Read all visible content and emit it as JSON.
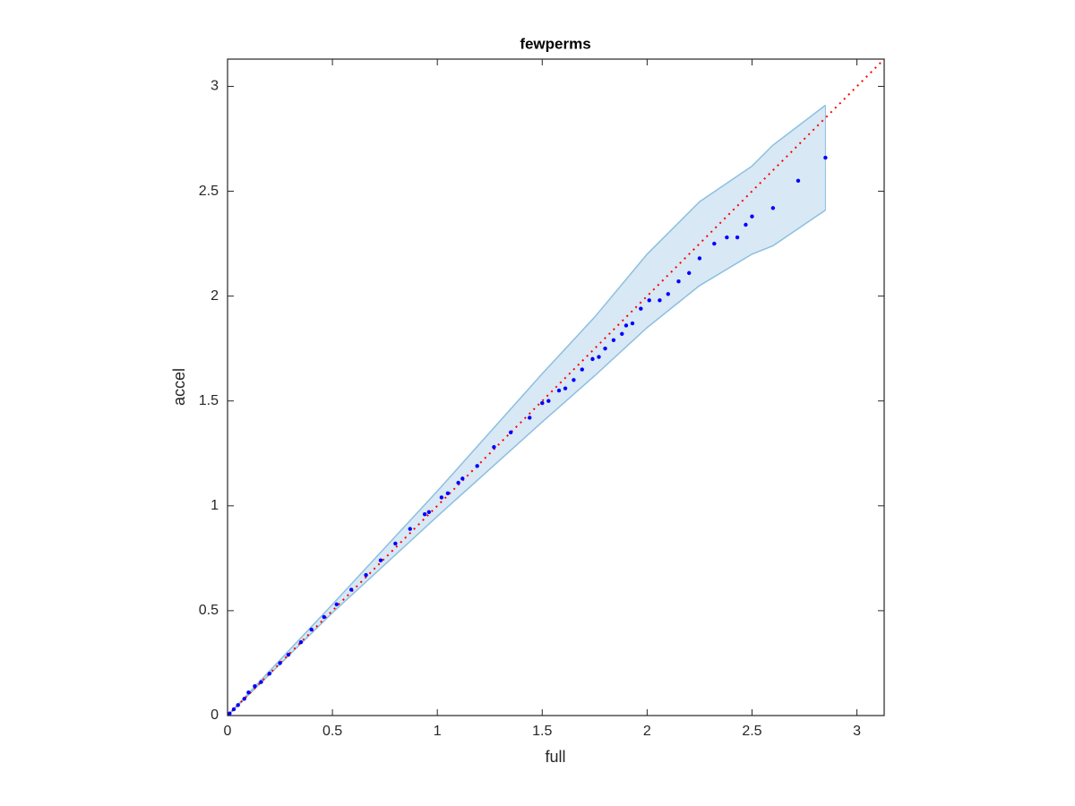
{
  "chart_data": {
    "type": "scatter",
    "title": "fewperms",
    "xlabel": "full",
    "ylabel": "accel",
    "xlim": [
      0,
      3.13
    ],
    "ylim": [
      0,
      3.13
    ],
    "xticks": [
      0,
      0.5,
      1,
      1.5,
      2,
      2.5,
      3
    ],
    "yticks": [
      0,
      0.5,
      1,
      1.5,
      2,
      2.5,
      3
    ],
    "box": true,
    "grid": false,
    "band": {
      "fill": "#d8e8f5",
      "edge": "#8cbfe0",
      "x": [
        0,
        0.5,
        1,
        1.5,
        1.75,
        2,
        2.25,
        2.5,
        2.6,
        2.85
      ],
      "upper": [
        0,
        0.53,
        1.07,
        1.63,
        1.9,
        2.2,
        2.45,
        2.62,
        2.72,
        2.91
      ],
      "lower": [
        0,
        0.49,
        0.95,
        1.4,
        1.62,
        1.85,
        2.05,
        2.2,
        2.24,
        2.41
      ]
    },
    "reference_line": {
      "color": "#ff0000",
      "dash": "dotted",
      "x": [
        0,
        3.13
      ],
      "values": [
        0,
        3.13
      ]
    },
    "series": [
      {
        "color": "#0000ff",
        "x": [
          0.01,
          0.03,
          0.05,
          0.08,
          0.1,
          0.13,
          0.16,
          0.2,
          0.25,
          0.29,
          0.35,
          0.4,
          0.46,
          0.52,
          0.59,
          0.66,
          0.73,
          0.8,
          0.87,
          0.94,
          0.96,
          1.02,
          1.05,
          1.1,
          1.12,
          1.19,
          1.27,
          1.35,
          1.44,
          1.5,
          1.53,
          1.58,
          1.61,
          1.65,
          1.69,
          1.74,
          1.77,
          1.8,
          1.84,
          1.88,
          1.9,
          1.93,
          1.97,
          2.01,
          2.06,
          2.1,
          2.15,
          2.2,
          2.25,
          2.32,
          2.38,
          2.43,
          2.47,
          2.5,
          2.6,
          2.72,
          2.85
        ],
        "values": [
          0.01,
          0.03,
          0.05,
          0.08,
          0.11,
          0.14,
          0.16,
          0.2,
          0.25,
          0.29,
          0.35,
          0.41,
          0.47,
          0.53,
          0.6,
          0.67,
          0.74,
          0.82,
          0.89,
          0.96,
          0.97,
          1.04,
          1.06,
          1.11,
          1.13,
          1.19,
          1.28,
          1.35,
          1.42,
          1.49,
          1.5,
          1.55,
          1.56,
          1.6,
          1.65,
          1.7,
          1.71,
          1.75,
          1.79,
          1.82,
          1.86,
          1.87,
          1.94,
          1.98,
          1.98,
          2.01,
          2.07,
          2.11,
          2.18,
          2.25,
          2.28,
          2.28,
          2.34,
          2.38,
          2.42,
          2.55,
          2.66
        ]
      }
    ]
  }
}
